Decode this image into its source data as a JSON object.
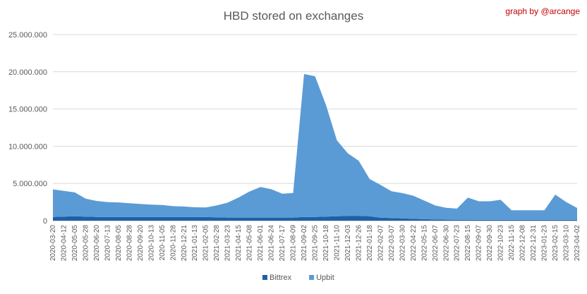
{
  "chart_data": {
    "type": "area",
    "stacked": true,
    "title": "HBD stored on exchanges",
    "credit": "graph by @arcange",
    "xlabel": "",
    "ylabel": "",
    "ylim": [
      0,
      25000000
    ],
    "y_ticks": [
      0,
      5000000,
      10000000,
      15000000,
      20000000,
      25000000
    ],
    "y_tick_labels": [
      "0",
      "5.000.000",
      "10.000.000",
      "15.000.000",
      "20.000.000",
      "25.000.000"
    ],
    "grid": true,
    "legend_position": "bottom",
    "x": [
      "2020-03-20",
      "2020-04-12",
      "2020-05-05",
      "2020-05-28",
      "2020-06-20",
      "2020-07-13",
      "2020-08-05",
      "2020-08-28",
      "2020-09-20",
      "2020-10-13",
      "2020-11-05",
      "2020-11-28",
      "2020-12-21",
      "2021-01-13",
      "2021-02-05",
      "2021-02-28",
      "2021-03-23",
      "2021-04-15",
      "2021-05-08",
      "2021-06-01",
      "2021-06-24",
      "2021-07-17",
      "2021-08-09",
      "2021-09-02",
      "2021-09-25",
      "2021-10-18",
      "2021-11-10",
      "2021-12-03",
      "2021-12-26",
      "2022-01-18",
      "2022-02-07",
      "2022-03-07",
      "2022-03-30",
      "2022-04-22",
      "2022-05-15",
      "2022-06-07",
      "2022-06-30",
      "2022-07-23",
      "2022-08-15",
      "2022-09-07",
      "2022-09-30",
      "2022-10-23",
      "2022-11-15",
      "2022-12-08",
      "2022-12-31",
      "2023-01-23",
      "2023-02-15",
      "2023-03-10",
      "2023-04-02"
    ],
    "series": [
      {
        "name": "Bittrex",
        "color": "#1f5fa8",
        "values": [
          500000,
          550000,
          600000,
          550000,
          500000,
          500000,
          500000,
          500000,
          500000,
          500000,
          500000,
          500000,
          500000,
          500000,
          480000,
          450000,
          420000,
          420000,
          420000,
          420000,
          420000,
          420000,
          420000,
          500000,
          500000,
          550000,
          600000,
          650000,
          650000,
          600000,
          400000,
          350000,
          300000,
          250000,
          200000,
          150000,
          130000,
          120000,
          110000,
          100000,
          100000,
          100000,
          100000,
          100000,
          100000,
          100000,
          100000,
          100000,
          100000
        ]
      },
      {
        "name": "Upbit",
        "color": "#5b9bd5",
        "values": [
          3700000,
          3450000,
          3200000,
          2400000,
          2150000,
          2000000,
          1950000,
          1850000,
          1750000,
          1650000,
          1600000,
          1450000,
          1400000,
          1300000,
          1300000,
          1600000,
          2000000,
          2700000,
          3500000,
          4100000,
          3800000,
          3200000,
          3300000,
          19200000,
          18900000,
          15000000,
          10200000,
          8400000,
          7400000,
          5000000,
          4400000,
          3600000,
          3400000,
          3100000,
          2500000,
          1900000,
          1600000,
          1500000,
          3000000,
          2500000,
          2500000,
          2700000,
          1300000,
          1300000,
          1300000,
          1300000,
          3400000,
          2400000,
          1600000
        ]
      }
    ]
  }
}
